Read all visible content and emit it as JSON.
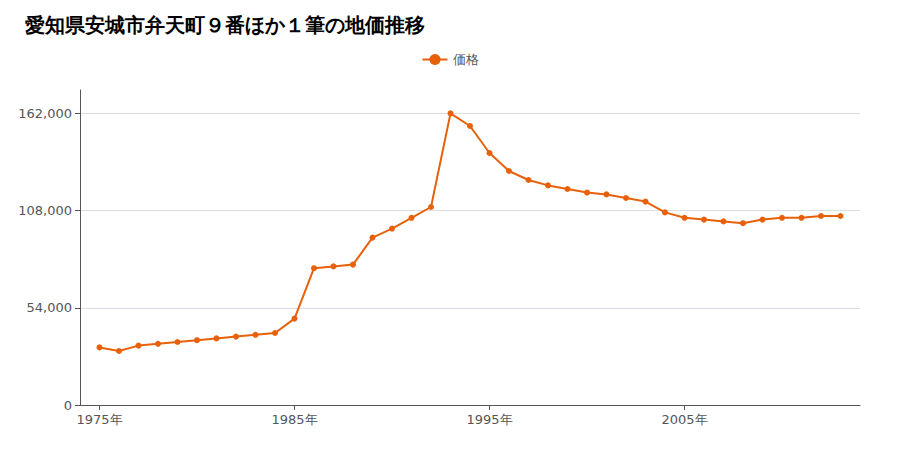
{
  "chart_data": {
    "type": "line",
    "title": "愛知県安城市弁天町９番ほか１筆の地価推移",
    "x": [
      1975,
      1976,
      1977,
      1978,
      1979,
      1980,
      1981,
      1982,
      1983,
      1984,
      1985,
      1986,
      1987,
      1988,
      1989,
      1990,
      1991,
      1992,
      1993,
      1994,
      1995,
      1996,
      1997,
      1998,
      1999,
      2000,
      2001,
      2002,
      2003,
      2004,
      2005,
      2006,
      2007,
      2008,
      2009,
      2010,
      2011,
      2012,
      2013
    ],
    "series": [
      {
        "name": "価格",
        "color": "#E8610A",
        "marker": "circle",
        "values": [
          32000,
          30000,
          33000,
          34000,
          35000,
          36000,
          37000,
          38000,
          39000,
          40000,
          48000,
          76000,
          77000,
          78000,
          93000,
          98000,
          104000,
          110000,
          162000,
          155000,
          140000,
          130000,
          125000,
          122000,
          120000,
          118000,
          117000,
          115000,
          113000,
          107000,
          104000,
          103000,
          102000,
          101000,
          103000,
          104000,
          104000,
          105000,
          105000
        ]
      }
    ],
    "xlim": [
      1974,
      2014
    ],
    "xticks": [
      {
        "value": 1975,
        "label": "1975年"
      },
      {
        "value": 1985,
        "label": "1985年"
      },
      {
        "value": 1995,
        "label": "1995年"
      },
      {
        "value": 2005,
        "label": "2005年"
      }
    ],
    "ylim": [
      0,
      175000
    ],
    "yticks": [
      0,
      {
        "value": 54000,
        "label": "54,000"
      },
      {
        "value": 108000,
        "label": "108,000"
      },
      {
        "value": 162000,
        "label": "162,000"
      }
    ],
    "grid": true,
    "legend": "top"
  }
}
